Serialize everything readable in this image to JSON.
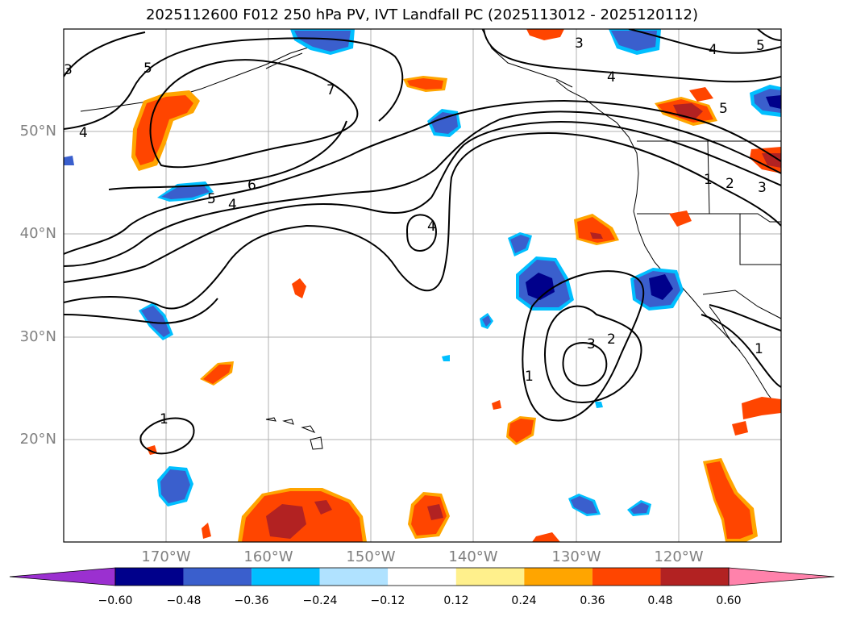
{
  "title": "2025112600 F012 250 hPa PV, IVT Landfall PC (2025113012 - 2025120112)",
  "lat_labels": [
    "50°N",
    "40°N",
    "30°N",
    "20°N"
  ],
  "lon_labels": [
    "170°W",
    "160°W",
    "150°W",
    "140°W",
    "130°W",
    "120°W"
  ],
  "colorbar": {
    "tick_labels": [
      "−0.60",
      "−0.48",
      "−0.36",
      "−0.24",
      "−0.12",
      "0.12",
      "0.24",
      "0.36",
      "0.48",
      "0.60"
    ],
    "colors": [
      "#9b30d0",
      "#00008b",
      "#3a5fcd",
      "#00bfff",
      "#b0e2ff",
      "#ffffff",
      "#fff08c",
      "#ffa500",
      "#ff4500",
      "#b22222",
      "#ff82ab"
    ]
  },
  "contour_labels": [
    "5",
    "3",
    "4",
    "7",
    "4",
    "6",
    "5",
    "4",
    "4",
    "3",
    "4",
    "5",
    "5",
    "1",
    "2",
    "3",
    "2",
    "3",
    "1",
    "1",
    "1"
  ],
  "fill_colors": {
    "positive_light": "#fff08c",
    "positive_mid": "#ffa500",
    "positive_strong": "#ff4500",
    "positive_max": "#b22222",
    "negative_light": "#b0e2ff",
    "negative_mid": "#00bfff",
    "negative_strong": "#3a5fcd",
    "negative_max": "#00008b"
  }
}
